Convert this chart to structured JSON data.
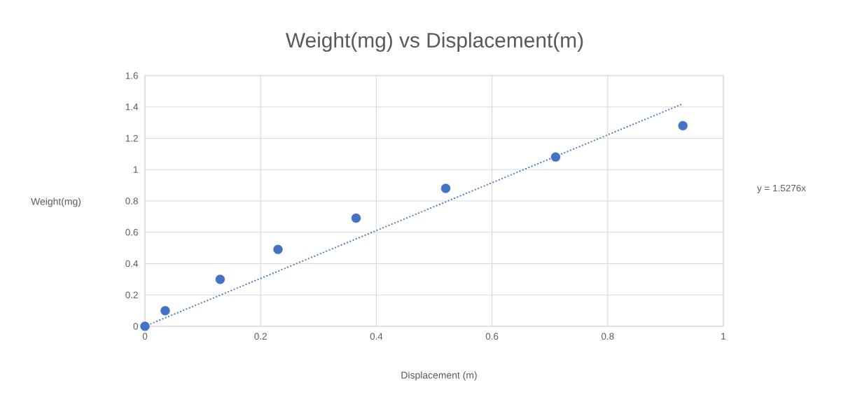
{
  "chart_data": {
    "type": "scatter",
    "title": "Weight(mg) vs Displacement(m)",
    "xlabel": "Displacement (m)",
    "ylabel": "Weight(mg)",
    "series": [
      {
        "color": "#4472c4",
        "marker": "circle",
        "x": [
          0,
          0.035,
          0.13,
          0.23,
          0.365,
          0.52,
          0.71,
          0.93
        ],
        "values": [
          0,
          0.1,
          0.3,
          0.49,
          0.69,
          0.88,
          1.08,
          1.28
        ]
      },
      {
        "type": "line",
        "color": "#4472c4",
        "line_style": "dotted",
        "x": [
          0,
          0.93
        ],
        "values": [
          0,
          1.42
        ]
      }
    ],
    "annotations": [
      "y = 1.5276x"
    ],
    "xlim": [
      0,
      1
    ],
    "xticks": [
      0,
      0.2,
      0.4,
      0.6,
      0.8,
      1
    ],
    "ylim": [
      0,
      1.6
    ],
    "yticks": [
      0,
      0.2,
      0.4,
      0.6,
      0.8,
      1,
      1.2,
      1.4,
      1.6
    ],
    "grid": true
  }
}
